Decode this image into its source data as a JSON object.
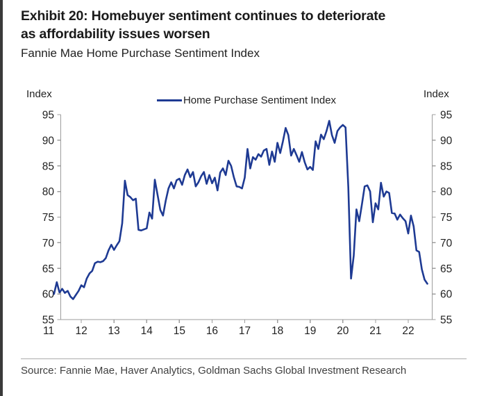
{
  "header": {
    "title_line1": "Exhibit 20: Homebuyer sentiment continues to deteriorate",
    "title_line2": "as affordability issues worsen",
    "subtitle": "Fannie Mae Home Purchase Sentiment Index"
  },
  "footer": {
    "source": "Source: Fannie Mae, Haver Analytics, Goldman Sachs Global Investment Research"
  },
  "chart_data": {
    "type": "line",
    "title": "Fannie Mae Home Purchase Sentiment Index",
    "left_axis_label": "Index",
    "right_axis_label": "Index",
    "ylim": [
      55,
      95
    ],
    "yticks": [
      55,
      60,
      65,
      70,
      75,
      80,
      85,
      90,
      95
    ],
    "x_tick_labels": [
      "11",
      "12",
      "13",
      "14",
      "15",
      "16",
      "17",
      "18",
      "19",
      "20",
      "21",
      "22"
    ],
    "grid": false,
    "legend_position": "top-center",
    "line_color": "#1e3a93",
    "axis_color": "#9c9c9c",
    "tick_label_color": "#1f1f1f",
    "series": [
      {
        "name": "Home Purchase Sentiment Index",
        "frequency": "monthly",
        "start_year": 2011,
        "start_month": 3,
        "values": [
          60.0,
          62.3,
          60.3,
          61.0,
          60.2,
          60.6,
          59.5,
          59.0,
          59.8,
          60.6,
          61.7,
          61.3,
          63.0,
          64.0,
          64.5,
          66.0,
          66.3,
          66.2,
          66.4,
          67.0,
          68.5,
          69.6,
          68.6,
          69.5,
          70.3,
          73.8,
          82.1,
          79.3,
          78.9,
          78.3,
          78.6,
          72.5,
          72.4,
          72.6,
          72.8,
          75.9,
          74.7,
          82.3,
          79.3,
          76.4,
          75.3,
          78.2,
          80.6,
          81.8,
          80.6,
          82.2,
          82.5,
          81.3,
          83.2,
          84.3,
          82.8,
          83.8,
          81.0,
          81.8,
          83.0,
          83.8,
          81.5,
          83.2,
          81.6,
          82.7,
          80.2,
          83.7,
          84.5,
          83.2,
          86.0,
          85.0,
          82.8,
          81.0,
          80.9,
          80.6,
          82.7,
          88.3,
          84.5,
          86.7,
          86.2,
          87.3,
          86.8,
          88.0,
          88.3,
          85.2,
          87.8,
          85.8,
          89.5,
          87.5,
          89.8,
          92.4,
          91.0,
          87.0,
          88.3,
          87.1,
          85.8,
          87.7,
          85.7,
          84.3,
          84.8,
          84.2,
          89.8,
          88.3,
          91.1,
          90.2,
          91.8,
          93.8,
          91.0,
          89.5,
          91.8,
          92.5,
          93.0,
          92.5,
          80.8,
          63.0,
          67.5,
          76.5,
          74.2,
          77.5,
          81.0,
          81.2,
          80.0,
          74.0,
          77.7,
          76.5,
          81.7,
          79.0,
          80.0,
          79.7,
          75.8,
          75.7,
          74.5,
          75.5,
          74.8,
          74.2,
          71.8,
          75.3,
          73.2,
          68.5,
          68.2,
          64.8,
          62.8,
          62.0
        ]
      }
    ]
  }
}
